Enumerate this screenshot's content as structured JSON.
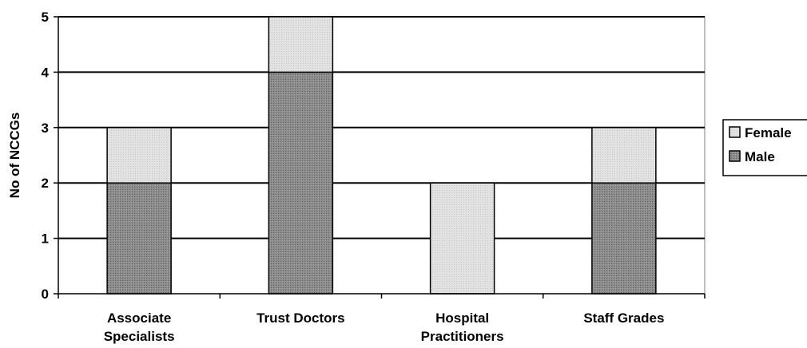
{
  "chart_data": {
    "type": "bar",
    "stacked": true,
    "categories": [
      [
        "Associate",
        "Specialists"
      ],
      [
        "Trust Doctors"
      ],
      [
        "Hospital",
        "Practitioners"
      ],
      [
        "Staff Grades"
      ]
    ],
    "series": [
      {
        "name": "Male",
        "values": [
          2,
          4,
          0,
          2
        ],
        "color": "#8c8c8c"
      },
      {
        "name": "Female",
        "values": [
          1,
          1,
          2,
          1
        ],
        "color": "#dedede"
      }
    ],
    "ylabel": "No of NCCGs",
    "xlabel": "",
    "ylim": [
      0,
      5
    ],
    "yticks": [
      "0",
      "1",
      "2",
      "3",
      "4",
      "5"
    ],
    "grid": true,
    "legend": {
      "position": "right",
      "order": [
        "Female",
        "Male"
      ]
    }
  }
}
